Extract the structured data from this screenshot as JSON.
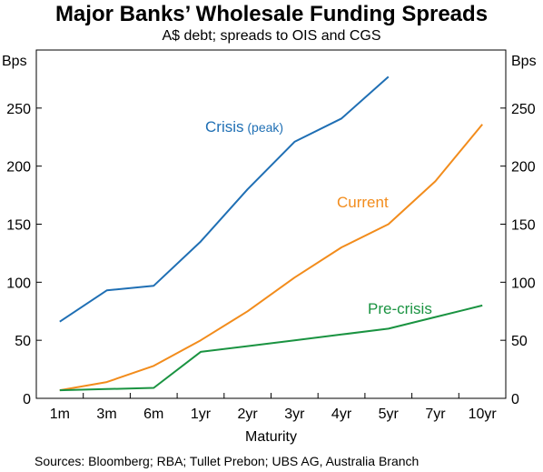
{
  "chart_data": {
    "type": "line",
    "title": "Major Banks’ Wholesale Funding Spreads",
    "subtitle": "A$ debt; spreads to OIS and CGS",
    "xlabel": "Maturity",
    "ylabel_left": "Bps",
    "ylabel_right": "Bps",
    "ylim": [
      0,
      300
    ],
    "yticks": [
      0,
      50,
      100,
      150,
      200,
      250
    ],
    "categories": [
      "1m",
      "3m",
      "6m",
      "1yr",
      "2yr",
      "3yr",
      "4yr",
      "5yr",
      "7yr",
      "10yr"
    ],
    "grid": false,
    "series": [
      {
        "name": "Crisis",
        "annotation_suffix": "(peak)",
        "color": "#1f6fb4",
        "values": [
          66,
          93,
          97,
          135,
          180,
          221,
          241,
          277,
          null,
          null
        ]
      },
      {
        "name": "Current",
        "color": "#f28c1c",
        "values": [
          7,
          14,
          28,
          50,
          75,
          104,
          130,
          150,
          187,
          236
        ]
      },
      {
        "name": "Pre-crisis",
        "color": "#1a9341",
        "values": [
          7,
          8,
          9,
          40,
          45,
          50,
          55,
          60,
          70,
          80
        ]
      }
    ],
    "source": "Sources: Bloomberg; RBA; Tullet Prebon; UBS AG, Australia Branch"
  }
}
